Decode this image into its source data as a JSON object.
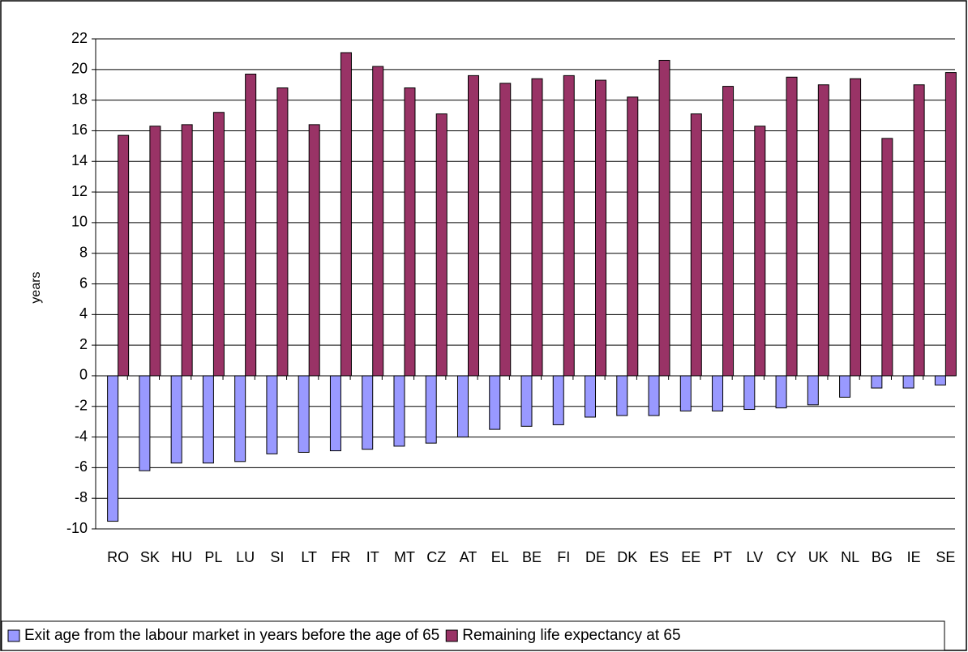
{
  "chart_data": {
    "type": "bar",
    "y_label": "years",
    "categories": [
      "RO",
      "SK",
      "HU",
      "PL",
      "LU",
      "SI",
      "LT",
      "FR",
      "IT",
      "MT",
      "CZ",
      "AT",
      "EL",
      "BE",
      "FI",
      "DE",
      "DK",
      "ES",
      "EE",
      "PT",
      "LV",
      "CY",
      "UK",
      "NL",
      "BG",
      "IE",
      "SE"
    ],
    "series": [
      {
        "name": "Exit age from the labour market in years before the age of 65",
        "color": "#9999ff",
        "values": [
          -9.5,
          -6.2,
          -5.7,
          -5.7,
          -5.6,
          -5.1,
          -5.0,
          -4.9,
          -4.8,
          -4.6,
          -4.4,
          -4.0,
          -3.5,
          -3.3,
          -3.2,
          -2.7,
          -2.6,
          -2.6,
          -2.3,
          -2.3,
          -2.2,
          -2.1,
          -1.9,
          -1.4,
          -0.8,
          -0.8,
          -0.6
        ]
      },
      {
        "name": "Remaining life expectancy at 65",
        "color": "#993366",
        "values": [
          15.7,
          16.3,
          16.4,
          17.2,
          19.7,
          18.8,
          16.4,
          21.1,
          20.2,
          18.8,
          17.1,
          19.6,
          19.1,
          19.4,
          19.6,
          19.3,
          18.2,
          20.6,
          17.1,
          18.9,
          16.3,
          19.5,
          19.0,
          19.4,
          15.5,
          19.0,
          19.8
        ]
      }
    ],
    "ylim": [
      -10,
      22
    ],
    "yticks": [
      -10,
      -8,
      -6,
      -4,
      -2,
      0,
      2,
      4,
      6,
      8,
      10,
      12,
      14,
      16,
      18,
      20,
      22
    ],
    "grid": true,
    "legend": "bottom"
  }
}
